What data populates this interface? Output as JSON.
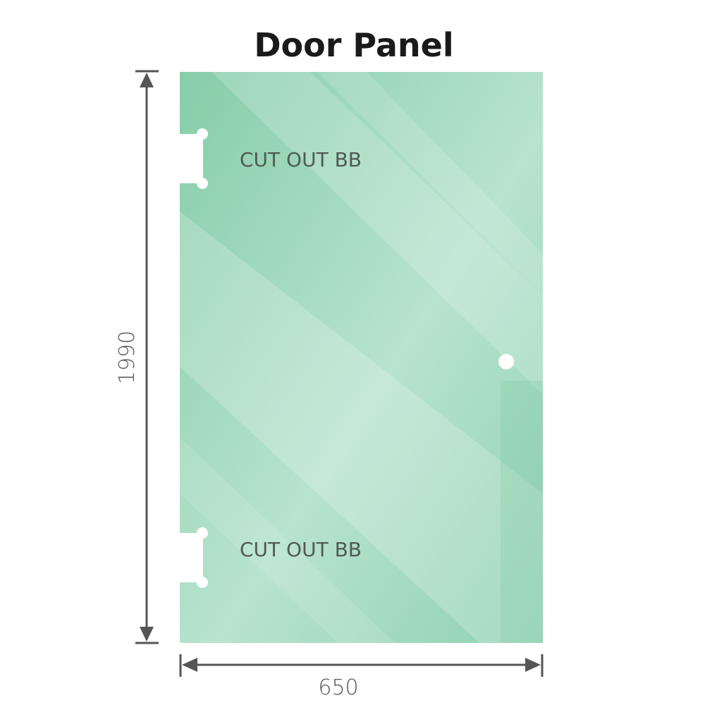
{
  "title": "Door Panel",
  "dimensions": {
    "height": "1990",
    "width": "650"
  },
  "cutouts": [
    {
      "label": "CUT OUT BB"
    },
    {
      "label": "CUT OUT BB"
    }
  ],
  "colors": {
    "glass": "#8fd1b0",
    "glass_light": "#bfe6d4",
    "dimension_line": "#555555",
    "title": "#1a1a1a"
  }
}
